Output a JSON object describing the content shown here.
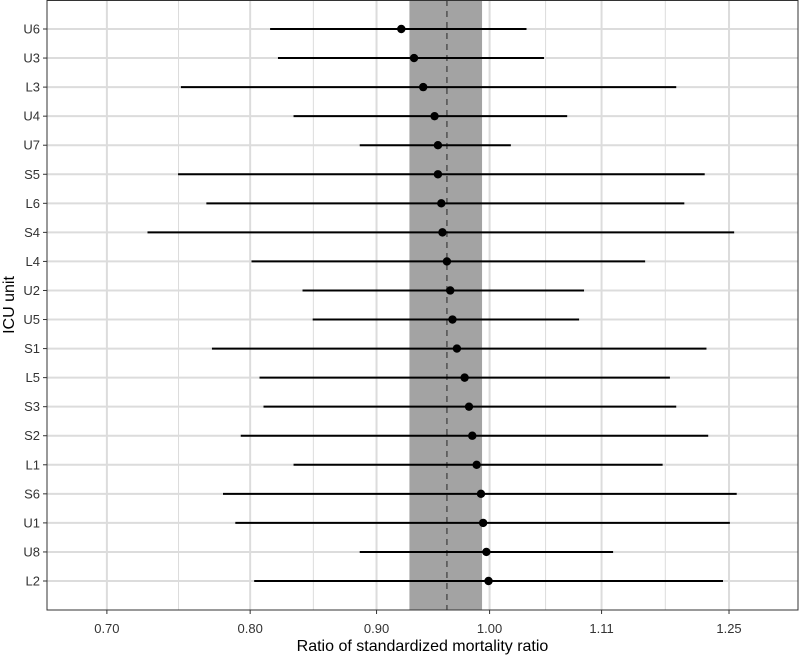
{
  "chart_data": {
    "type": "forest",
    "xlabel": "Ratio of standardized mortality ratio",
    "ylabel": "ICU unit",
    "x_scale": "log",
    "xlim": [
      0.662,
      1.333
    ],
    "x_ticks": [
      0.7,
      0.8,
      0.9,
      1.0,
      1.11,
      1.25
    ],
    "x_tick_labels": [
      "0.70",
      "0.80",
      "0.90",
      "1.00",
      "1.11",
      "1.25"
    ],
    "grid": true,
    "reference_line": 0.961,
    "reference_band": [
      0.928,
      0.993
    ],
    "colors": {
      "band": "#a3a3a3",
      "grid": "#dcdcdc",
      "points": "#000000",
      "reference_line": "#555555"
    },
    "units": [
      {
        "label": "U6",
        "estimate": 0.921,
        "lower": 0.815,
        "upper": 1.035
      },
      {
        "label": "U3",
        "estimate": 0.932,
        "lower": 0.821,
        "upper": 1.052
      },
      {
        "label": "L3",
        "estimate": 0.94,
        "lower": 0.75,
        "upper": 1.19
      },
      {
        "label": "U4",
        "estimate": 0.95,
        "lower": 0.833,
        "upper": 1.075
      },
      {
        "label": "U7",
        "estimate": 0.953,
        "lower": 0.886,
        "upper": 1.02
      },
      {
        "label": "S5",
        "estimate": 0.953,
        "lower": 0.748,
        "upper": 1.222
      },
      {
        "label": "L6",
        "estimate": 0.956,
        "lower": 0.768,
        "upper": 1.199
      },
      {
        "label": "S4",
        "estimate": 0.957,
        "lower": 0.727,
        "upper": 1.256
      },
      {
        "label": "L4",
        "estimate": 0.961,
        "lower": 0.801,
        "upper": 1.156
      },
      {
        "label": "U2",
        "estimate": 0.964,
        "lower": 0.84,
        "upper": 1.092
      },
      {
        "label": "U5",
        "estimate": 0.966,
        "lower": 0.848,
        "upper": 1.087
      },
      {
        "label": "S1",
        "estimate": 0.97,
        "lower": 0.772,
        "upper": 1.224
      },
      {
        "label": "L5",
        "estimate": 0.977,
        "lower": 0.807,
        "upper": 1.183
      },
      {
        "label": "S3",
        "estimate": 0.981,
        "lower": 0.81,
        "upper": 1.19
      },
      {
        "label": "S2",
        "estimate": 0.984,
        "lower": 0.793,
        "upper": 1.226
      },
      {
        "label": "L1",
        "estimate": 0.988,
        "lower": 0.833,
        "upper": 1.175
      },
      {
        "label": "S6",
        "estimate": 0.992,
        "lower": 0.78,
        "upper": 1.259
      },
      {
        "label": "U1",
        "estimate": 0.994,
        "lower": 0.789,
        "upper": 1.251
      },
      {
        "label": "U8",
        "estimate": 0.997,
        "lower": 0.886,
        "upper": 1.122
      },
      {
        "label": "L2",
        "estimate": 0.999,
        "lower": 0.803,
        "upper": 1.243
      }
    ]
  }
}
